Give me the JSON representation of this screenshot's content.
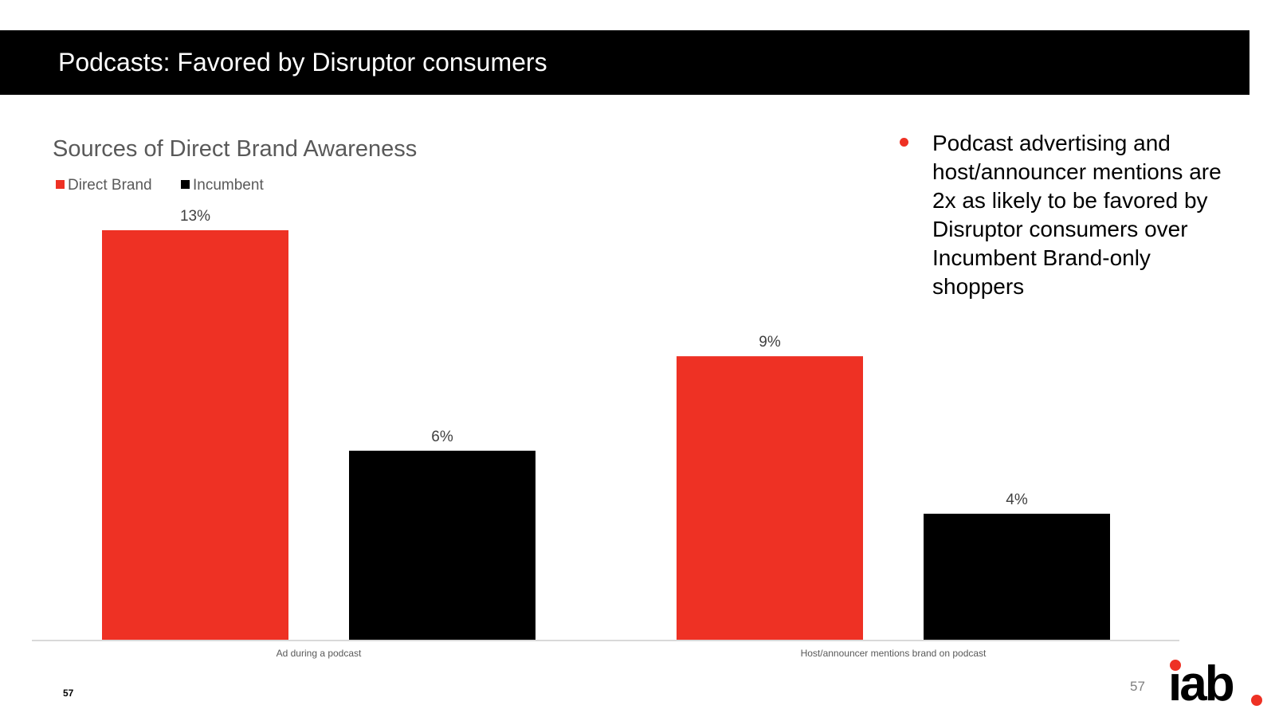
{
  "slide": {
    "title": "Podcasts: Favored by Disruptor consumers",
    "bullet_text": "Podcast advertising and host/announcer mentions are 2x as likely to be favored by Disruptor consumers over Incumbent Brand-only shoppers",
    "page_number_left": "57",
    "page_number_right": "57",
    "logo_text": "iab",
    "logo_dot": "."
  },
  "colors": {
    "accent_red": "#EE3124",
    "black": "#000000",
    "axis": "#D9D9D9",
    "label_text": "#404040"
  },
  "chart_data": {
    "type": "bar",
    "title": "Sources of Direct Brand Awareness",
    "categories": [
      "Ad during a podcast",
      "Host/announcer mentions brand on podcast"
    ],
    "series": [
      {
        "name": "Direct Brand",
        "values": [
          13,
          9
        ],
        "labels": [
          "13%",
          "9%"
        ],
        "color": "#EE3124"
      },
      {
        "name": "Incumbent",
        "values": [
          6,
          4
        ],
        "labels": [
          "6%",
          "4%"
        ],
        "color": "#000000"
      }
    ],
    "xlabel": "",
    "ylabel": "",
    "ylim": [
      0,
      13
    ],
    "legend_position": "top-left",
    "grid": false
  }
}
